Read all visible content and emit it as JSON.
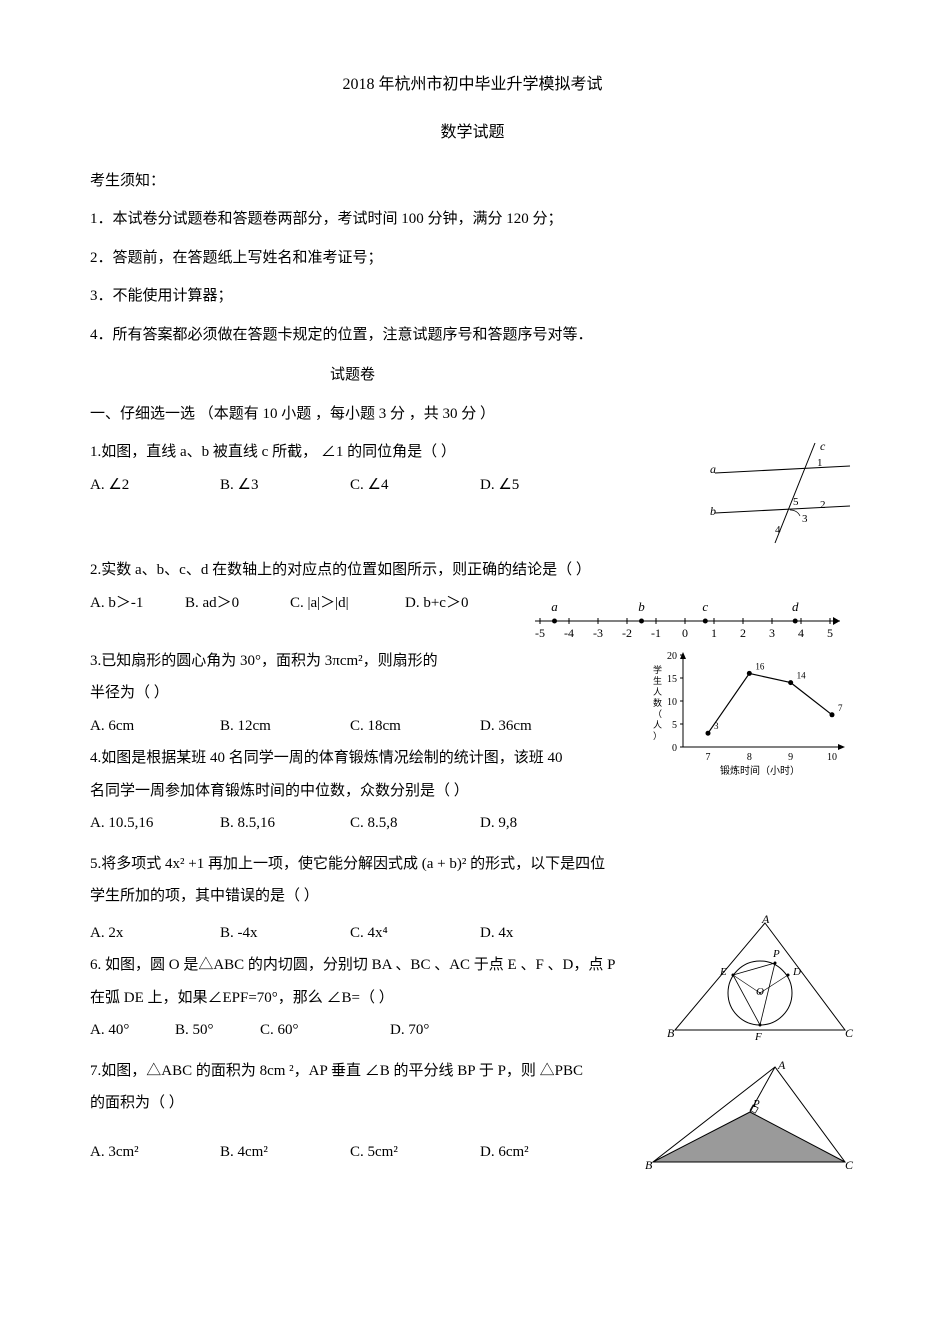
{
  "header": {
    "title": "2018 年杭州市初中毕业升学模拟考试",
    "subtitle": "数学试题"
  },
  "notice": {
    "head": "考生须知：",
    "lines": [
      "1．本试卷分试题卷和答题卷两部分，考试时间 100 分钟，满分 120 分；",
      "2．答题前，在答题纸上写姓名和准考证号；",
      "3．不能使用计算器；",
      "4．所有答案都必须做在答题卡规定的位置，注意试题序号和答题序号对等．"
    ]
  },
  "paper_label": "试题卷",
  "section1": "一、仔细选一选 （本题有 10 小题 ，每小题 3 分 ，共 30 分 ）",
  "q1": {
    "text": "1.如图，直线 a、b 被直线 c 所截， ∠1 的同位角是（ ）",
    "A": "A. ∠2",
    "B": "B. ∠3",
    "C": "C. ∠4",
    "D": "D. ∠5"
  },
  "q2": {
    "text": "2.实数 a、b、c、d 在数轴上的对应点的位置如图所示，则正确的结论是（ ）",
    "A": "A. b＞-1",
    "B": "B. ad＞0",
    "C": "C. |a|＞|d|",
    "D": "D. b+c＞0"
  },
  "q3": {
    "text1": "3.已知扇形的圆心角为 30°，面积为 3πcm²，则扇形的",
    "text2": "半径为（ ）",
    "A": "A. 6cm",
    "B": "B. 12cm",
    "C": "C. 18cm",
    "D": "D. 36cm"
  },
  "q4": {
    "text1": "4.如图是根据某班 40 名同学一周的体育锻炼情况绘制的统计图，该班 40",
    "text2": "名同学一周参加体育锻炼时间的中位数，众数分别是（ ）",
    "A": "A. 10.5,16",
    "B": "B. 8.5,16",
    "C": "C. 8.5,8",
    "D": "D. 9,8"
  },
  "q5": {
    "text1": "5.将多项式 4x² +1 再加上一项，使它能分解因式成 (a + b)² 的形式，以下是四位",
    "text2": "学生所加的项，其中错误的是（  ）",
    "A": "A. 2x",
    "B": "B. -4x",
    "C": "C. 4x⁴",
    "D": "D. 4x"
  },
  "q6": {
    "text1": "6. 如图，圆 O 是△ABC 的内切圆，分别切 BA 、BC 、AC 于点 E 、F 、D，点 P",
    "text2": "在弧 DE 上，如果∠EPF=70°，那么 ∠B=（ ）",
    "A": "A. 40°",
    "B": "B. 50°",
    "C": "C. 60°",
    "D": "D. 70°"
  },
  "q7": {
    "text1": "7.如图，△ABC 的面积为 8cm ²，AP 垂直 ∠B 的平分线 BP 于 P，则 △PBC",
    "text2": "的面积为（ ）",
    "A": "A. 3cm²",
    "B": "B. 4cm²",
    "C": "C. 5cm²",
    "D": "D. 6cm²"
  },
  "numberline": {
    "labels": [
      "-5",
      "-4",
      "-3",
      "-2",
      "-1",
      "0",
      "1",
      "2",
      "3",
      "4",
      "5"
    ],
    "top_labels": [
      "a",
      "b",
      "c",
      "d"
    ],
    "point_positions": [
      -4.5,
      -1.5,
      0.7,
      3.8
    ]
  },
  "chart_q4": {
    "x_labels": [
      "7",
      "8",
      "9",
      "10"
    ],
    "y_ticks": [
      "0",
      "5",
      "10",
      "15",
      "20"
    ],
    "values": [
      3,
      16,
      14,
      7
    ],
    "x_axis_label": "锻炼时间（小时）",
    "y_axis_label": "学生人数（人）",
    "line_color": "#000000",
    "point_color": "#000000",
    "bg": "#ffffff"
  },
  "fig_colors": {
    "stroke": "#000000",
    "fill_shade": "#9a9a9a"
  }
}
